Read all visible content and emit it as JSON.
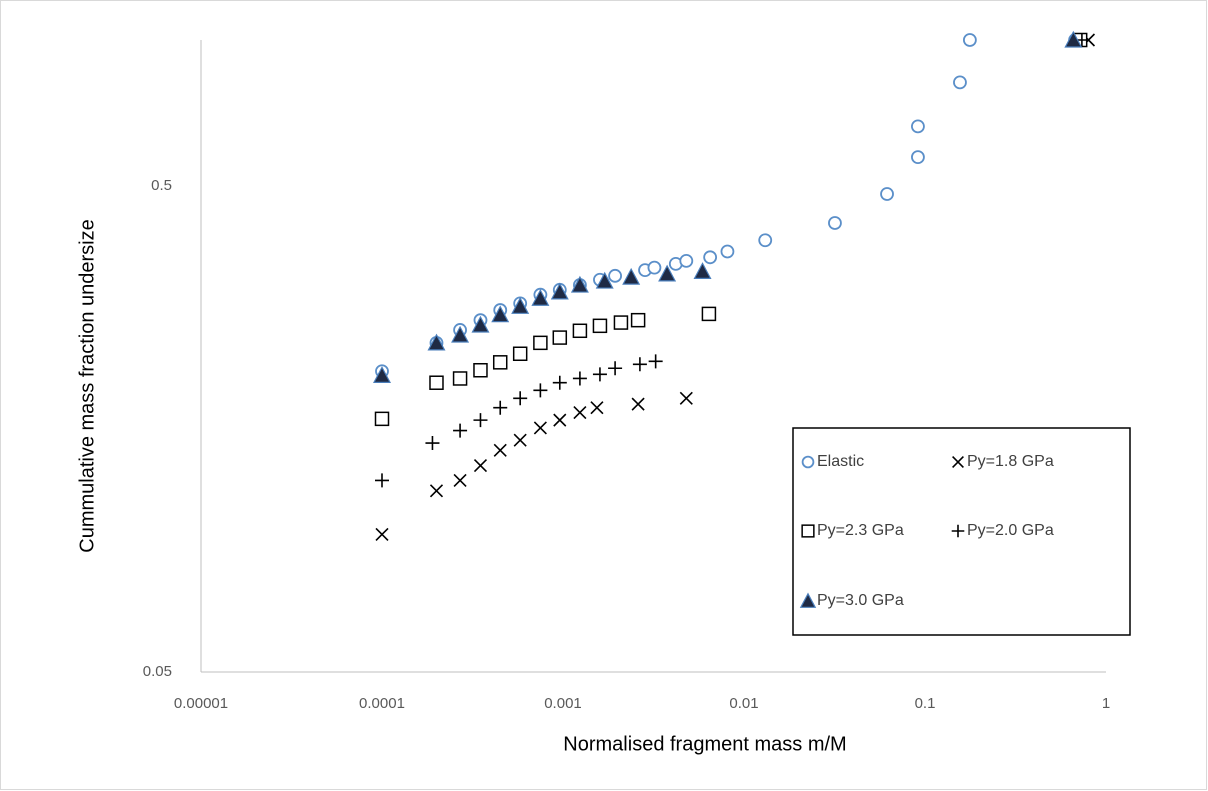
{
  "chart_data": {
    "type": "scatter",
    "x_label": "Normalised fragment mass m/M",
    "y_label": "Cummulative mass fraction undersize",
    "xlim": [
      1e-05,
      1
    ],
    "ylim": [
      0.05,
      1
    ],
    "xticks": [
      1e-05,
      0.0001,
      0.001,
      0.01,
      0.1,
      1
    ],
    "yticks": [
      0.05,
      0.5
    ],
    "log_x": true,
    "log_y": true,
    "grid": false,
    "legend": "right",
    "series": [
      {
        "name": "Elastic",
        "marker": "circle",
        "color": "#5b8fc9",
        "x": [
          0.0001,
          0.0002,
          0.00027,
          0.00035,
          0.00045,
          0.00058,
          0.00075,
          0.00096,
          0.00124,
          0.0016,
          0.00194,
          0.00284,
          0.0032,
          0.0042,
          0.0048,
          0.0065,
          0.0081,
          0.0131,
          0.0318,
          0.0617,
          0.0914,
          0.0914,
          0.156,
          0.177,
          0.675
        ],
        "values": [
          0.208,
          0.238,
          0.253,
          0.265,
          0.278,
          0.287,
          0.299,
          0.306,
          0.313,
          0.321,
          0.327,
          0.336,
          0.34,
          0.346,
          0.351,
          0.357,
          0.367,
          0.387,
          0.42,
          0.482,
          0.574,
          0.664,
          0.818,
          1.0,
          1.0
        ]
      },
      {
        "name": "Py=1.8 GPa",
        "marker": "x",
        "color": "#000000",
        "x": [
          0.0001,
          0.0002,
          0.00027,
          0.00035,
          0.00045,
          0.00058,
          0.00075,
          0.00096,
          0.00124,
          0.00154,
          0.0026,
          0.0048,
          0.8
        ],
        "values": [
          0.096,
          0.118,
          0.124,
          0.133,
          0.143,
          0.15,
          0.159,
          0.165,
          0.171,
          0.175,
          0.178,
          0.183,
          1.0
        ]
      },
      {
        "name": "Py=2.3 GPa",
        "marker": "square",
        "color": "#000000",
        "x": [
          0.0001,
          0.0002,
          0.00027,
          0.00035,
          0.00045,
          0.00058,
          0.00075,
          0.00096,
          0.00124,
          0.0016,
          0.00209,
          0.0026,
          0.0064,
          0.72
        ],
        "values": [
          0.166,
          0.197,
          0.201,
          0.209,
          0.217,
          0.226,
          0.238,
          0.244,
          0.252,
          0.258,
          0.262,
          0.265,
          0.273,
          1.0
        ]
      },
      {
        "name": "Py=2.0 GPa",
        "marker": "plus",
        "color": "#000000",
        "x": [
          0.0001,
          0.00019,
          0.00027,
          0.00035,
          0.00045,
          0.00058,
          0.00075,
          0.00096,
          0.00124,
          0.0016,
          0.00194,
          0.00266,
          0.00325,
          0.736
        ],
        "values": [
          0.124,
          0.148,
          0.157,
          0.165,
          0.175,
          0.183,
          0.19,
          0.197,
          0.201,
          0.205,
          0.211,
          0.215,
          0.218,
          1.0
        ]
      },
      {
        "name": "Py=3.0 GPa",
        "marker": "triangle",
        "color": "#1f2a44",
        "x": [
          0.0001,
          0.0002,
          0.00027,
          0.00035,
          0.00045,
          0.00058,
          0.00075,
          0.00096,
          0.00124,
          0.0017,
          0.00238,
          0.00376,
          0.0059,
          0.66
        ],
        "values": [
          0.204,
          0.238,
          0.247,
          0.259,
          0.272,
          0.283,
          0.294,
          0.303,
          0.313,
          0.319,
          0.325,
          0.33,
          0.334,
          1.0
        ]
      }
    ]
  }
}
